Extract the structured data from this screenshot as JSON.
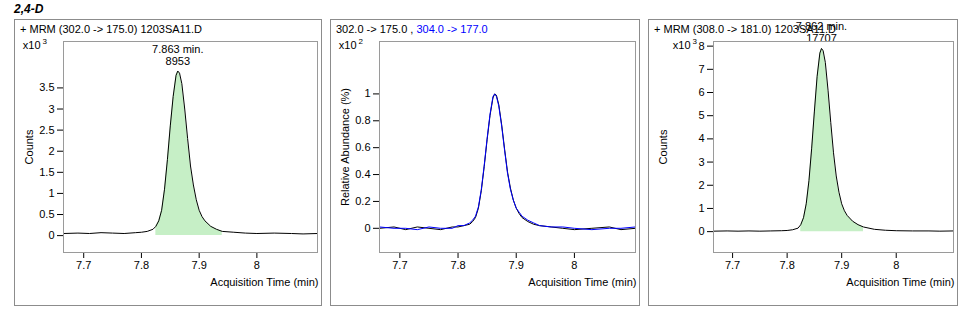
{
  "title": "2,4-D",
  "chart_data": [
    {
      "type": "line",
      "title": "+ MRM (302.0 -> 175.0) 1203SA11.D",
      "y_label": "Counts",
      "x_label": "Acquisition Time (min)",
      "y_multiplier": [
        "x10",
        "3"
      ],
      "xlim": [
        7.665,
        8.105
      ],
      "xticks": [
        7.7,
        7.8,
        7.9,
        8
      ],
      "ylim": [
        -0.4,
        4.6
      ],
      "yticks": [
        0,
        0.5,
        1,
        1.5,
        2,
        2.5,
        3,
        3.5
      ],
      "x": [
        7.665,
        7.69,
        7.71,
        7.73,
        7.75,
        7.77,
        7.79,
        7.8,
        7.81,
        7.82,
        7.825,
        7.83,
        7.835,
        7.84,
        7.845,
        7.85,
        7.855,
        7.86,
        7.863,
        7.866,
        7.87,
        7.875,
        7.88,
        7.885,
        7.89,
        7.895,
        7.9,
        7.905,
        7.91,
        7.92,
        7.93,
        7.94,
        7.96,
        7.98,
        8.0,
        8.03,
        8.06,
        8.08,
        8.105
      ],
      "values": [
        0.05,
        0.06,
        0.05,
        0.07,
        0.06,
        0.05,
        0.07,
        0.08,
        0.1,
        0.15,
        0.22,
        0.35,
        0.6,
        1.1,
        1.8,
        2.6,
        3.3,
        3.8,
        3.9,
        3.85,
        3.6,
        3.0,
        2.3,
        1.65,
        1.2,
        0.85,
        0.6,
        0.45,
        0.35,
        0.22,
        0.15,
        0.1,
        0.08,
        0.06,
        0.05,
        0.06,
        0.05,
        0.04,
        0.05
      ],
      "color": "#000000",
      "integration": [
        7.825,
        7.94
      ],
      "annotations": [
        "7.863 min.",
        "8953"
      ]
    },
    {
      "type": "line",
      "y_label": "Relative Abundance (%)",
      "x_label": "Acquisition Time (min)",
      "y_multiplier": [
        "x10",
        "2"
      ],
      "xlim": [
        7.665,
        8.105
      ],
      "xticks": [
        7.7,
        7.8,
        7.9,
        8
      ],
      "ylim": [
        -0.18,
        1.39
      ],
      "yticks": [
        0,
        0.2,
        0.4,
        0.6,
        0.8,
        1
      ],
      "legend": "top-left",
      "x": [
        7.665,
        7.69,
        7.71,
        7.73,
        7.75,
        7.77,
        7.79,
        7.8,
        7.81,
        7.82,
        7.825,
        7.83,
        7.835,
        7.84,
        7.845,
        7.85,
        7.855,
        7.86,
        7.863,
        7.866,
        7.87,
        7.875,
        7.88,
        7.885,
        7.89,
        7.895,
        7.9,
        7.905,
        7.91,
        7.92,
        7.93,
        7.94,
        7.96,
        7.98,
        8.0,
        8.03,
        8.06,
        8.08,
        8.105
      ],
      "series": [
        {
          "name": "302.0 -> 175.0",
          "color": "#000000",
          "values": [
            0.0,
            0.01,
            -0.01,
            0.01,
            0.0,
            -0.01,
            0.01,
            0.01,
            0.02,
            0.03,
            0.05,
            0.08,
            0.15,
            0.28,
            0.46,
            0.66,
            0.84,
            0.97,
            1.0,
            0.99,
            0.92,
            0.77,
            0.59,
            0.42,
            0.3,
            0.21,
            0.15,
            0.11,
            0.08,
            0.05,
            0.03,
            0.02,
            0.01,
            0.0,
            -0.01,
            0.0,
            0.01,
            -0.01,
            0.0
          ]
        },
        {
          "name": "304.0 -> 177.0",
          "color": "#0000ff",
          "values": [
            0.01,
            0.0,
            0.0,
            -0.01,
            0.01,
            0.0,
            0.0,
            0.02,
            0.02,
            0.04,
            0.06,
            0.09,
            0.16,
            0.29,
            0.47,
            0.67,
            0.85,
            0.98,
            1.0,
            0.98,
            0.91,
            0.76,
            0.58,
            0.41,
            0.29,
            0.21,
            0.15,
            0.12,
            0.09,
            0.06,
            0.04,
            0.02,
            0.01,
            0.01,
            0.0,
            -0.01,
            0.0,
            0.0,
            0.01
          ]
        }
      ]
    },
    {
      "type": "line",
      "title": "+ MRM (308.0 -> 181.0) 1203SA11.D",
      "y_label": "Counts",
      "x_label": "Acquisition Time (min)",
      "y_multiplier": [
        "x10",
        "3"
      ],
      "xlim": [
        7.665,
        8.105
      ],
      "xticks": [
        7.7,
        7.8,
        7.9,
        8
      ],
      "ylim": [
        -0.9,
        8.2
      ],
      "yticks": [
        0,
        1,
        2,
        3,
        4,
        5,
        6,
        7,
        8
      ],
      "x": [
        7.665,
        7.69,
        7.71,
        7.73,
        7.75,
        7.77,
        7.79,
        7.8,
        7.81,
        7.82,
        7.825,
        7.83,
        7.835,
        7.84,
        7.845,
        7.85,
        7.855,
        7.86,
        7.863,
        7.866,
        7.87,
        7.875,
        7.88,
        7.885,
        7.89,
        7.895,
        7.9,
        7.905,
        7.91,
        7.92,
        7.93,
        7.94,
        7.96,
        7.98,
        8.0,
        8.03,
        8.06,
        8.08,
        8.105
      ],
      "values": [
        0.02,
        0.03,
        0.02,
        0.03,
        0.02,
        0.03,
        0.04,
        0.05,
        0.08,
        0.15,
        0.3,
        0.6,
        1.2,
        2.2,
        3.6,
        5.2,
        6.7,
        7.7,
        7.9,
        7.8,
        7.3,
        6.1,
        4.7,
        3.4,
        2.4,
        1.7,
        1.2,
        0.9,
        0.7,
        0.45,
        0.3,
        0.2,
        0.1,
        0.06,
        0.04,
        0.03,
        0.03,
        0.02,
        0.03
      ],
      "color": "#000000",
      "integration": [
        7.825,
        7.94
      ],
      "annotations": [
        "7.862 min.",
        "17707"
      ]
    }
  ]
}
